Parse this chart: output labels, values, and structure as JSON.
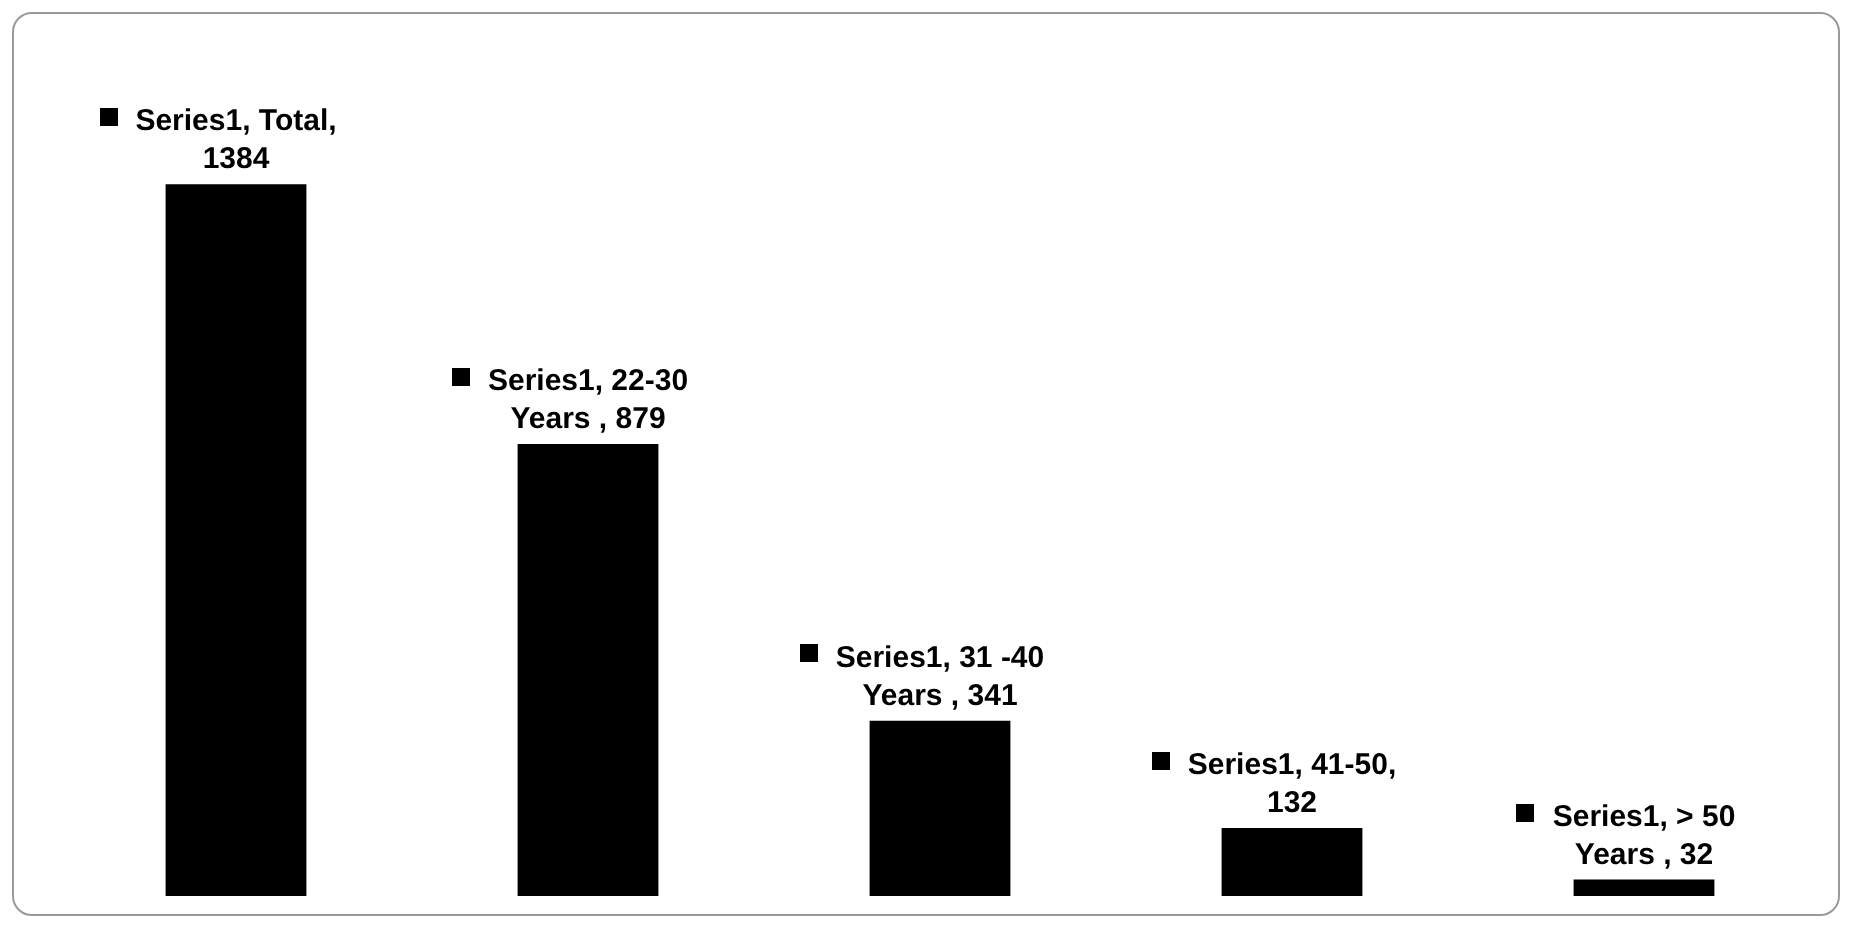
{
  "chart_data": {
    "type": "bar",
    "categories": [
      null,
      null,
      null,
      null,
      null
    ],
    "series": [
      {
        "color": "#000000",
        "values": [
          1384,
          879,
          341,
          132,
          32
        ],
        "value_labels": [
          "Series1, Total, 1384",
          "Series1, 22-30 Years , 879",
          "Series1, 31 -40 Years , 341",
          "Series1, 41-50, 132",
          "Series1, > 50 Years , 32"
        ]
      }
    ],
    "tick_labels": false,
    "legend": false
  }
}
